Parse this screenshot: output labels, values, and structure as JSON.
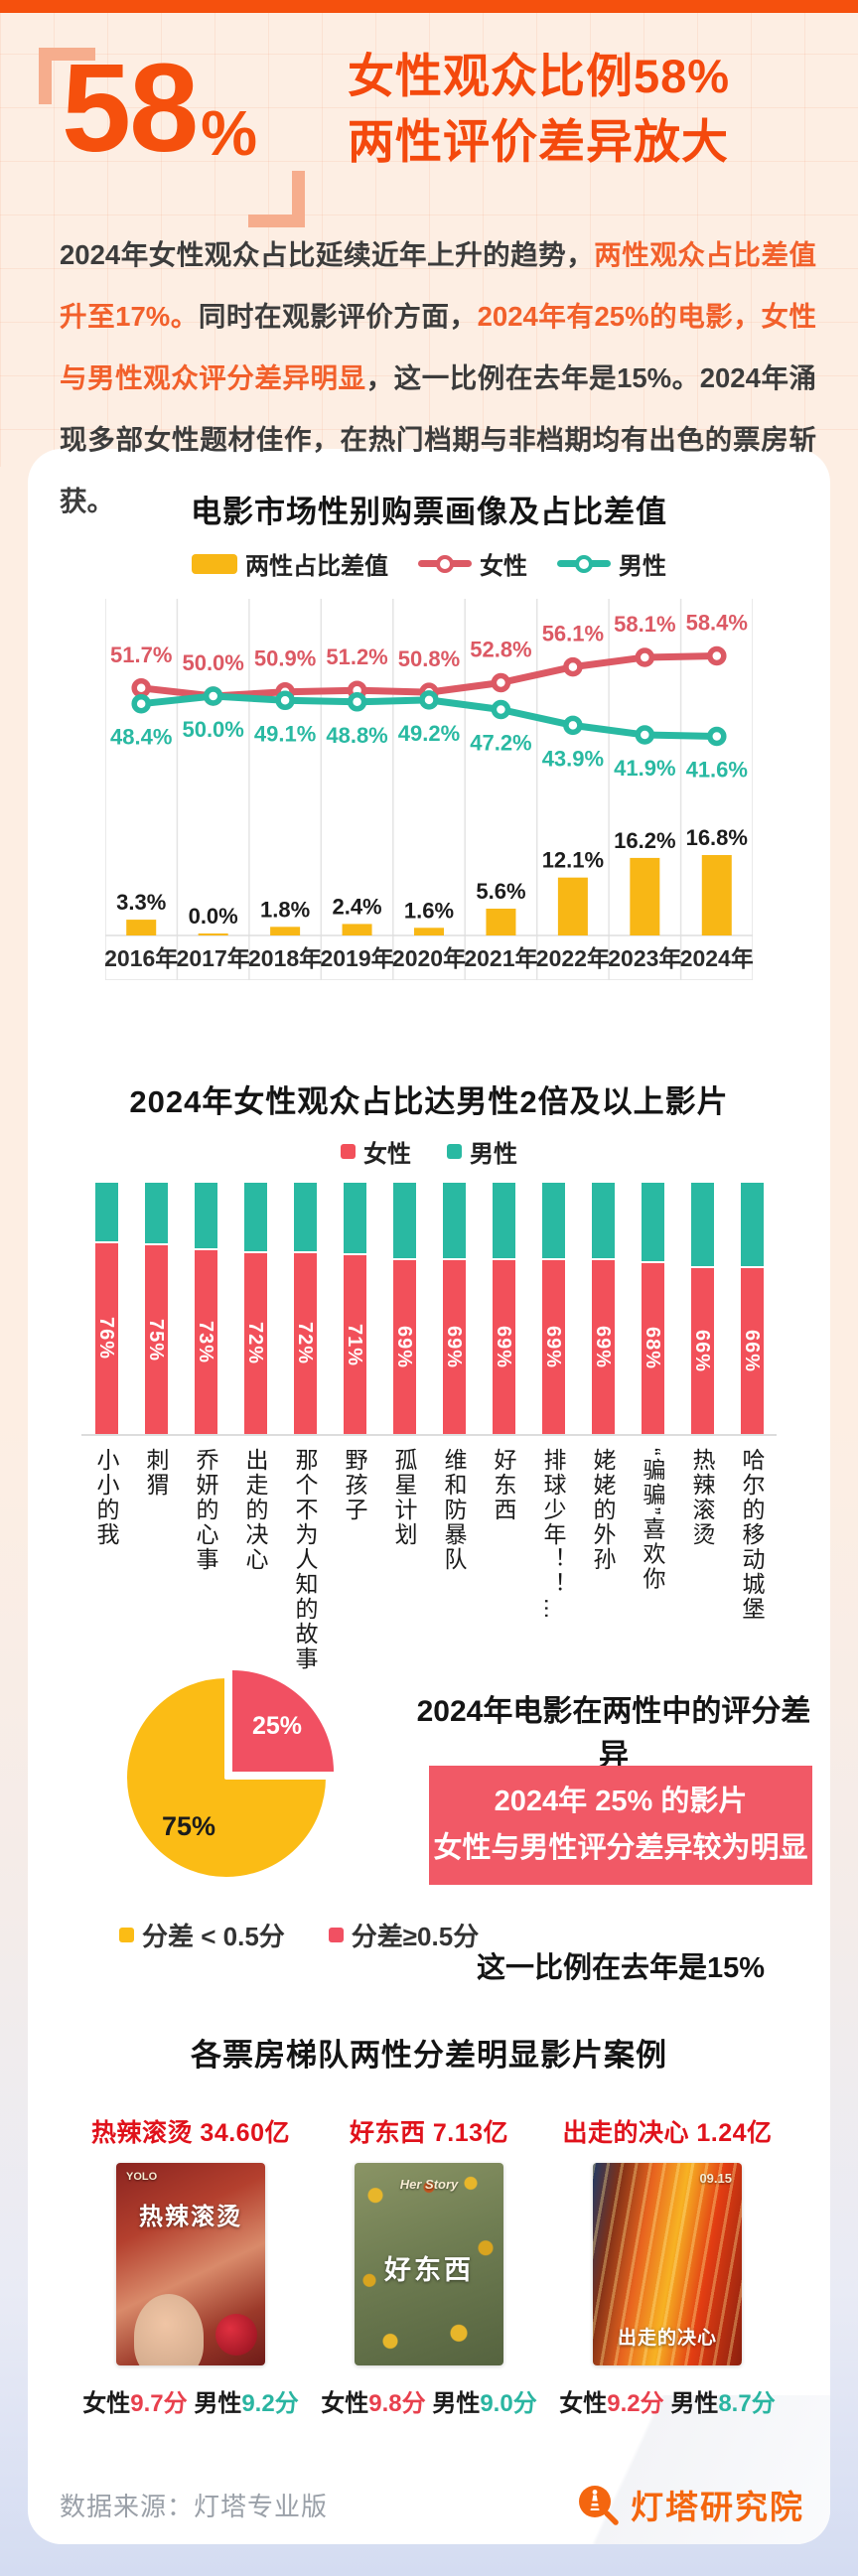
{
  "header": {
    "big_number": "58",
    "percent_sign": "%",
    "title_line1": "女性观众比例58%",
    "title_line2": "两性评价差异放大"
  },
  "intro": {
    "segments": [
      {
        "t": "2024年女性观众占比延续近年上升的趋势，",
        "hl": false
      },
      {
        "t": "两性观众占比差值升至17%。",
        "hl": true
      },
      {
        "t": "同时在观影评价方面，",
        "hl": false
      },
      {
        "t": "2024年有25%的电影，女性与男性观众评分差异明显",
        "hl": true
      },
      {
        "t": "，这一比例在去年是15%。2024年涌现多部女性题材佳作，在热门档期与非档期均有出色的票房斩获。",
        "hl": false
      }
    ]
  },
  "chart_data": [
    {
      "type": "bar+line combo",
      "title": "电影市场性别购票画像及占比差值",
      "categories": [
        "2016年",
        "2017年",
        "2018年",
        "2019年",
        "2020年",
        "2021年",
        "2022年",
        "2023年",
        "2024年"
      ],
      "series": [
        {
          "name": "两性占比差值",
          "kind": "bar",
          "color": "#f8b715",
          "values": [
            3.3,
            0.0,
            1.8,
            2.4,
            1.6,
            5.6,
            12.1,
            16.2,
            16.8
          ]
        },
        {
          "name": "女性",
          "kind": "line",
          "color": "#dc5964",
          "values": [
            51.7,
            50.0,
            50.9,
            51.2,
            50.8,
            52.8,
            56.1,
            58.1,
            58.4
          ]
        },
        {
          "name": "男性",
          "kind": "line",
          "color": "#29b9a2",
          "values": [
            48.4,
            50.0,
            49.1,
            48.8,
            49.2,
            47.2,
            43.9,
            41.9,
            41.6
          ]
        }
      ],
      "unit": "%",
      "ylim": [
        0,
        70
      ],
      "grid": "vertical column separators, bottom axis",
      "legend_position": "top"
    },
    {
      "type": "stacked bar (100%)",
      "title": "2024年女性观众占比达男性2倍及以上影片",
      "legend": [
        "女性",
        "男性"
      ],
      "colors": {
        "female": "#f2505a",
        "male": "#29b9a2"
      },
      "categories": [
        "小小的我",
        "刺猬",
        "乔妍的心事",
        "出走的决心",
        "那个不为人知的故事",
        "野孩子",
        "孤星计划",
        "维和防暴队",
        "好东西",
        "排球少年！！…",
        "姥姥的外孙",
        "“骗骗”喜欢你",
        "热辣滚烫",
        "哈尔的移动城堡"
      ],
      "female_values": [
        76,
        75,
        73,
        72,
        72,
        71,
        69,
        69,
        69,
        69,
        69,
        68,
        66,
        66
      ],
      "label_format": "female share % shown rotated inside red segment"
    },
    {
      "type": "pie",
      "title": "2024年电影在两性中的评分差异",
      "slices": [
        {
          "label": "分差 < 0.5分",
          "value": 75,
          "color": "#fbbc15"
        },
        {
          "label": "分差≥0.5分",
          "value": 25,
          "color": "#f15062"
        }
      ],
      "callout_line1": "2024年 25% 的影片",
      "callout_line2": "女性与男性评分差异较为明显",
      "note": "这一比例在去年是15%",
      "legend_position": "bottom-left"
    }
  ],
  "posters": {
    "section_title": "各票房梯队两性分差明显影片案例",
    "items": [
      {
        "title": "热辣滚烫 34.60亿",
        "art_text": "热辣滚烫",
        "art_sub": "YOLO",
        "female_label": "女性",
        "female_score": "9.7分",
        "male_label": "男性",
        "male_score": "9.2分"
      },
      {
        "title": "好东西 7.13亿",
        "art_text": "好东西",
        "art_sub": "Her Story",
        "female_label": "女性",
        "female_score": "9.8分",
        "male_label": "男性",
        "male_score": "9.0分"
      },
      {
        "title": "出走的决心 1.24亿",
        "art_text": "出走的决心",
        "art_sub": "09.15",
        "female_label": "女性",
        "female_score": "9.2分",
        "male_label": "男性",
        "male_score": "8.7分"
      }
    ]
  },
  "footer": {
    "source": "数据来源：灯塔专业版",
    "brand": "灯塔研究院"
  },
  "colors": {
    "accent_orange": "#f5500d",
    "highlight_text": "#f2602b",
    "female_line": "#dc5964",
    "male_line": "#29b9a2",
    "diff_bar": "#f8b715",
    "pie_yellow": "#fbbc15",
    "pie_red": "#f15062",
    "callout_bg": "#f15966",
    "poster_title_red": "#e0121b"
  }
}
